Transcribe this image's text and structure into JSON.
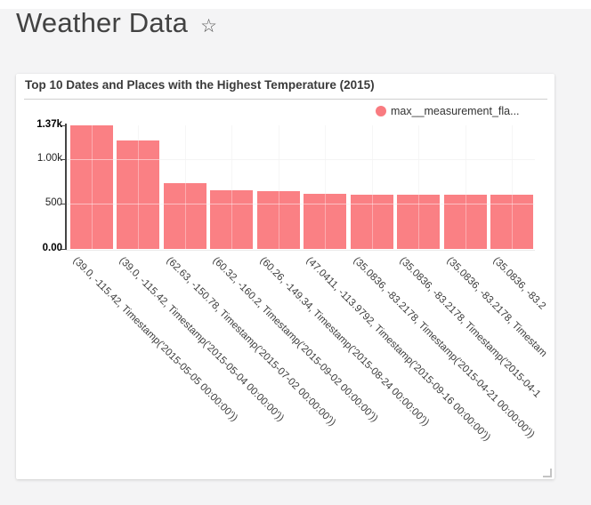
{
  "page": {
    "title": "Weather Data",
    "favorite_icon": "☆"
  },
  "card": {
    "title": "Top 10 Dates and Places with the Highest Temperature (2015)",
    "legend": {
      "label": "max__measurement_fla...",
      "color": "#f97b80"
    }
  },
  "chart_data": {
    "type": "bar",
    "title": "Top 10 Dates and Places with the Highest Temperature (2015)",
    "legend_entries": [
      "max__measurement_fla..."
    ],
    "legend_position": "top-right",
    "bar_color": "#fa8084",
    "grid": true,
    "x_label_rotation_deg": 45,
    "xlabel": "",
    "ylabel": "",
    "ylim": [
      0,
      1370
    ],
    "yticks": [
      {
        "label": "0.00",
        "value": 0,
        "bold": true
      },
      {
        "label": "500",
        "value": 500,
        "bold": false
      },
      {
        "label": "1.00k",
        "value": 1000,
        "bold": false
      },
      {
        "label": "1.37k",
        "value": 1370,
        "bold": true
      }
    ],
    "categories": [
      "(39.0, -115.42, Timestamp('2015-05-05 00:00:00'))",
      "(39.0, -115.42, Timestamp('2015-05-04 00:00:00'))",
      "(62.63, -150.78, Timestamp('2015-07-02 00:00:00'))",
      "(60.32, -160.2, Timestamp('2015-09-02 00:00:00'))",
      "(60.26, -149.34, Timestamp('2015-08-24 00:00:00'))",
      "(47.0411, -113.9792, Timestamp('2015-09-16 00:00:00'))",
      "(35.0836, -83.2178, Timestamp('2015-04-21 00:00:00'))",
      "(35.0836, -83.2178, Timestamp('2015-04-1",
      "(35.0836, -83.2178, Timestam",
      "(35.0836, -83.2"
    ],
    "values": [
      1370,
      1200,
      725,
      650,
      645,
      610,
      602,
      600,
      598,
      597
    ]
  }
}
